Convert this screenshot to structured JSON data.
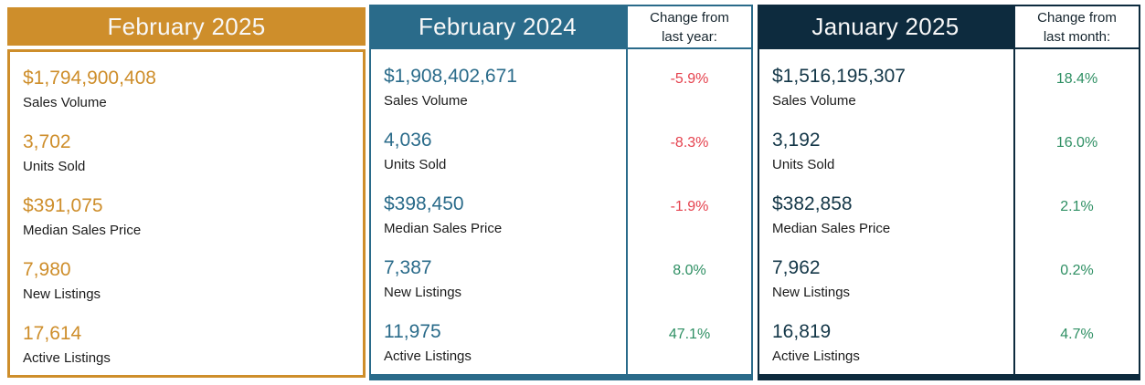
{
  "colors": {
    "gold": "#CE8E2B",
    "teal": "#2A6B8A",
    "navy": "#0D2B3E",
    "positive_change": "#2E8F63",
    "negative_change": "#E5424E"
  },
  "panels": [
    {
      "title": "February 2025",
      "rows": [
        {
          "value": "$1,794,900,408",
          "label": "Sales Volume"
        },
        {
          "value": "3,702",
          "label": "Units Sold"
        },
        {
          "value": "$391,075",
          "label": "Median Sales Price"
        },
        {
          "value": "7,980",
          "label": "New Listings"
        },
        {
          "value": "17,614",
          "label": "Active Listings"
        }
      ]
    },
    {
      "title": "February 2024",
      "change_header": "Change from last year:",
      "rows": [
        {
          "value": "$1,908,402,671",
          "label": "Sales Volume",
          "change": "-5.9%"
        },
        {
          "value": "4,036",
          "label": "Units Sold",
          "change": "-8.3%"
        },
        {
          "value": "$398,450",
          "label": "Median Sales Price",
          "change": "-1.9%"
        },
        {
          "value": "7,387",
          "label": "New Listings",
          "change": "8.0%"
        },
        {
          "value": "11,975",
          "label": "Active Listings",
          "change": "47.1%"
        }
      ]
    },
    {
      "title": "January 2025",
      "change_header": "Change from last month:",
      "rows": [
        {
          "value": "$1,516,195,307",
          "label": "Sales Volume",
          "change": "18.4%"
        },
        {
          "value": "3,192",
          "label": "Units Sold",
          "change": "16.0%"
        },
        {
          "value": "$382,858",
          "label": "Median Sales Price",
          "change": "2.1%"
        },
        {
          "value": "7,962",
          "label": "New Listings",
          "change": "0.2%"
        },
        {
          "value": "16,819",
          "label": "Active Listings",
          "change": "4.7%"
        }
      ]
    }
  ],
  "chart_data": {
    "type": "table",
    "metrics": [
      "Sales Volume",
      "Units Sold",
      "Median Sales Price",
      "New Listings",
      "Active Listings"
    ],
    "columns": [
      {
        "period": "February 2025",
        "values": [
          1794900408,
          3702,
          391075,
          7980,
          17614
        ]
      },
      {
        "period": "February 2024",
        "values": [
          1908402671,
          4036,
          398450,
          7387,
          11975
        ],
        "change_from_last_year_pct": [
          -5.9,
          -8.3,
          -1.9,
          8.0,
          47.1
        ]
      },
      {
        "period": "January 2025",
        "values": [
          1516195307,
          3192,
          382858,
          7962,
          16819
        ],
        "change_from_last_month_pct": [
          18.4,
          16.0,
          2.1,
          0.2,
          4.7
        ]
      }
    ]
  }
}
